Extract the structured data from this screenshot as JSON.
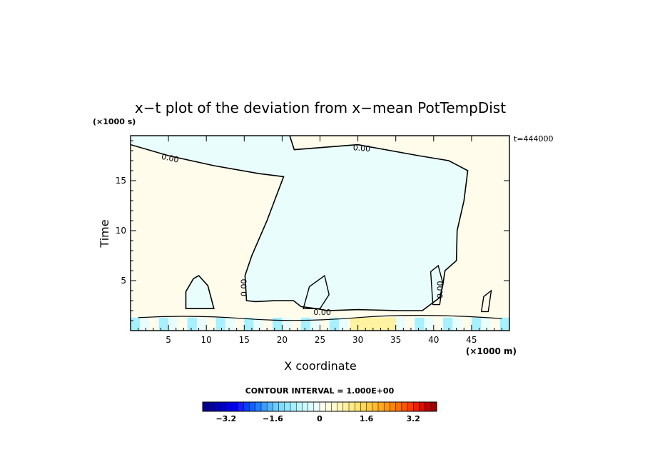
{
  "chart_data": {
    "type": "contour",
    "title": "x−t plot of the deviation from x−mean PotTempDist",
    "xlabel": "X coordinate",
    "ylabel": "Time",
    "x_unit": "(×1000 m)",
    "y_unit": "(×1000 s)",
    "time_annotation": "t=444000",
    "xlim": [
      0,
      50
    ],
    "ylim": [
      0,
      19.5
    ],
    "x_ticks": [
      5,
      10,
      15,
      20,
      25,
      30,
      35,
      40,
      45
    ],
    "y_ticks": [
      5,
      10,
      15
    ],
    "contour_interval_text": "CONTOUR INTERVAL = 1.000E+00",
    "contour_labels": [
      {
        "text": "0.00",
        "x": 5.2,
        "y": 17.2,
        "angle": 12
      },
      {
        "text": "0.00",
        "x": 30.5,
        "y": 18.2,
        "angle": 5
      },
      {
        "text": "0.00",
        "x": 15.0,
        "y": 4.3,
        "angle": -90
      },
      {
        "text": "0.00",
        "x": 40.9,
        "y": 4.1,
        "angle": -90
      },
      {
        "text": "0.00",
        "x": 25.3,
        "y": 1.8,
        "angle": 0
      }
    ],
    "zero_contour_main": [
      [
        21.0,
        19.5
      ],
      [
        21.6,
        18.1
      ],
      [
        30.0,
        18.6
      ],
      [
        38.0,
        17.5
      ],
      [
        42.0,
        17.0
      ],
      [
        44.5,
        16.0
      ],
      [
        44.0,
        13.0
      ],
      [
        43.1,
        10.0
      ],
      [
        43.0,
        7.0
      ],
      [
        41.5,
        6.0
      ],
      [
        41.2,
        4.5
      ],
      [
        40.8,
        3.3
      ],
      [
        38.5,
        2.0
      ],
      [
        35.5,
        2.0
      ],
      [
        30.0,
        2.1
      ],
      [
        26.0,
        2.0
      ],
      [
        24.5,
        2.2
      ],
      [
        22.5,
        2.4
      ],
      [
        21.5,
        3.0
      ],
      [
        19.0,
        3.0
      ],
      [
        16.5,
        2.9
      ],
      [
        15.3,
        3.0
      ],
      [
        15.1,
        5.5
      ],
      [
        16.0,
        7.5
      ],
      [
        18.0,
        11.0
      ],
      [
        20.2,
        15.4
      ],
      [
        17.0,
        15.7
      ],
      [
        11.0,
        16.5
      ],
      [
        5.0,
        17.5
      ],
      [
        0.0,
        18.6
      ]
    ],
    "zero_contour_bubble": [
      [
        7.3,
        2.2
      ],
      [
        7.3,
        3.9
      ],
      [
        8.3,
        5.2
      ],
      [
        9.0,
        5.5
      ],
      [
        10.2,
        4.5
      ],
      [
        11.0,
        2.2
      ]
    ],
    "colorbar": {
      "tick_labels": [
        "−3.2",
        "−1.6",
        "0",
        "1.6",
        "3.2"
      ],
      "tick_values": [
        -3.2,
        -1.6,
        0,
        1.6,
        3.2
      ],
      "range": [
        -4.0,
        4.0
      ],
      "step": 0.2,
      "colors_negative": [
        "#00008b",
        "#0000a0",
        "#0000b8",
        "#0000cd",
        "#0000e6",
        "#0000ff",
        "#1a1aff",
        "#0040ff",
        "#1060ff",
        "#2080ff",
        "#3a9cff",
        "#55b5ff",
        "#6dccff",
        "#80dcff",
        "#92e8ff",
        "#a6f0ff",
        "#baf6ff",
        "#cdfaff",
        "#ddfcff",
        "#edfeff"
      ],
      "colors_positive": [
        "#fffff0",
        "#fffde0",
        "#fffbcc",
        "#fff7b8",
        "#fff2a0",
        "#ffec88",
        "#ffe270",
        "#ffd75a",
        "#ffca46",
        "#ffbb30",
        "#ffaa1e",
        "#ff9810",
        "#ff8400",
        "#ff6e00",
        "#ff5500",
        "#ff3a00",
        "#f02000",
        "#d81000",
        "#c00000",
        "#a00000"
      ]
    },
    "colors": {
      "positive_fill": "#fffcec",
      "negative_fill": "#e9fdfd",
      "strong_negative_fill": "#a6f0ff",
      "strong_positive_fill": "#fff2a0"
    }
  }
}
